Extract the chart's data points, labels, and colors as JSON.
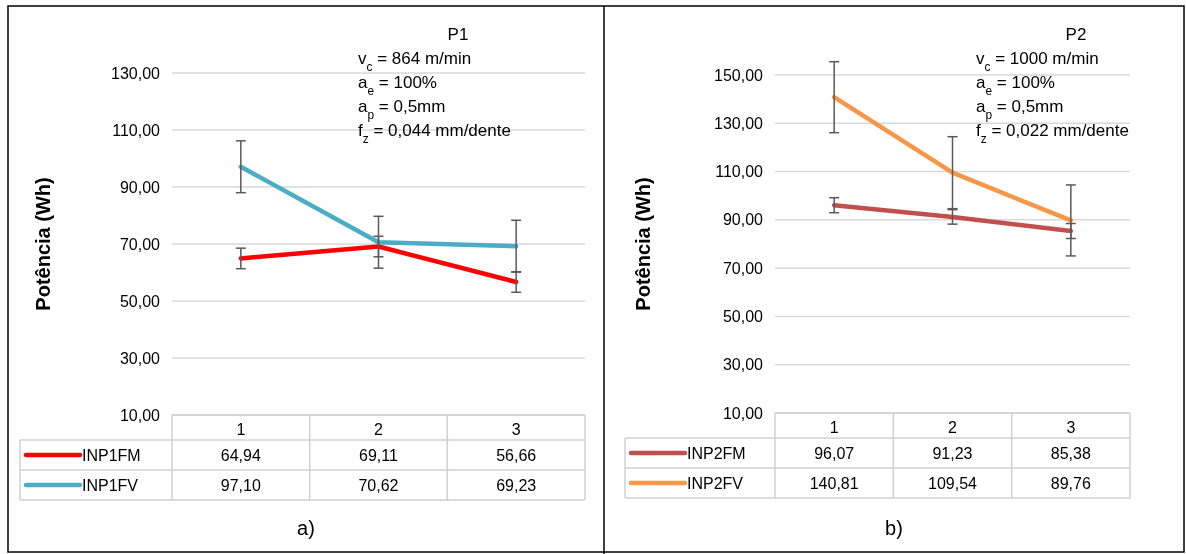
{
  "chart_data": [
    {
      "type": "line",
      "categories": [
        "1",
        "2",
        "3"
      ],
      "ylabel": "Potência (Wh)",
      "ylim": [
        10,
        130
      ],
      "yticks": [
        {
          "value": 10,
          "label": "10,00"
        },
        {
          "value": 30,
          "label": "30,00"
        },
        {
          "value": 50,
          "label": "50,00"
        },
        {
          "value": 70,
          "label": "70,00"
        },
        {
          "value": 90,
          "label": "90,00"
        },
        {
          "value": 110,
          "label": "110,00"
        },
        {
          "value": 130,
          "label": "130,00"
        }
      ],
      "grid": "y",
      "legend": "bottom",
      "series": [
        {
          "name": "INP1FM",
          "color": "#ff0000",
          "values": [
            64.94,
            69.11,
            56.66
          ],
          "value_labels": [
            "64,94",
            "69,11",
            "56,66"
          ],
          "errors": [
            3.6,
            3.6,
            3.6
          ]
        },
        {
          "name": "INP1FV",
          "color": "#4bacc6",
          "values": [
            97.1,
            70.62,
            69.23
          ],
          "value_labels": [
            "97,10",
            "70,62",
            "69,23"
          ],
          "errors": [
            9.1,
            9.1,
            9.1
          ]
        }
      ],
      "annotations": [
        "P1",
        "v$_{c}$ = 864 m/min",
        "a$_{e}$ = 100%",
        "a$_{p}$ = 0,5mm",
        "f$_{z}$ = 0,044 mm/dente",
        "a)"
      ]
    },
    {
      "type": "line",
      "categories": [
        "1",
        "2",
        "3"
      ],
      "ylabel": "Potência (Wh)",
      "ylim": [
        10,
        150
      ],
      "yticks": [
        {
          "value": 10,
          "label": "10,00"
        },
        {
          "value": 30,
          "label": "30,00"
        },
        {
          "value": 50,
          "label": "50,00"
        },
        {
          "value": 70,
          "label": "70,00"
        },
        {
          "value": 90,
          "label": "90,00"
        },
        {
          "value": 110,
          "label": "110,00"
        },
        {
          "value": 130,
          "label": "130,00"
        },
        {
          "value": 150,
          "label": "150,00"
        }
      ],
      "grid": "y",
      "legend": "bottom",
      "series": [
        {
          "name": "INP2FM",
          "color": "#c0504d",
          "values": [
            96.07,
            91.23,
            85.38
          ],
          "value_labels": [
            "96,07",
            "91,23",
            "85,38"
          ],
          "errors": [
            3.1,
            3.0,
            3.1
          ]
        },
        {
          "name": "INP2FV",
          "color": "#f79646",
          "values": [
            140.81,
            109.54,
            89.76
          ],
          "value_labels": [
            "140,81",
            "109,54",
            "89,76"
          ],
          "errors": [
            14.7,
            14.9,
            14.7
          ]
        }
      ],
      "annotations": [
        "P2",
        "v$_{c}$ = 1000 m/min",
        "a$_{e}$ = 100%",
        "a$_{p}$ = 0,5mm",
        "f$_{z}$ = 0,022 mm/dente",
        "b)"
      ]
    }
  ]
}
